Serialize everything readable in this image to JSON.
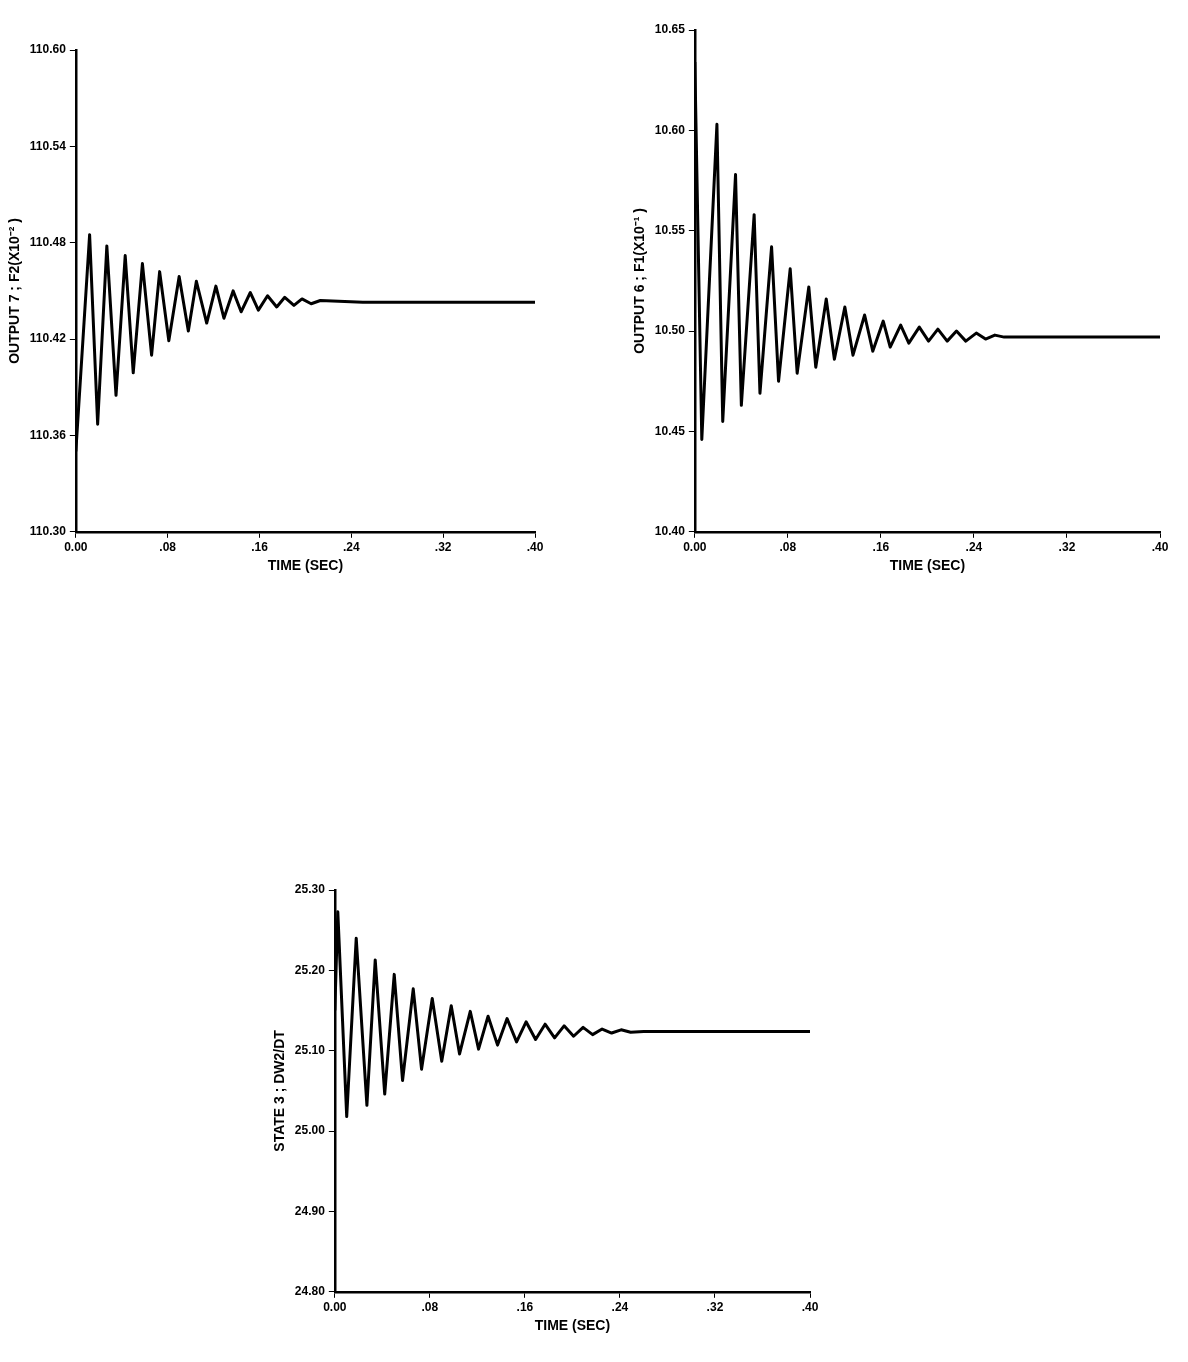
{
  "chart_data": [
    {
      "type": "line",
      "xlabel": "TIME (SEC)",
      "ylabel": "OUTPUT 7 ; F2(X10⁻² )",
      "color": "#000000",
      "x": [
        0,
        0.012,
        0.019,
        0.027,
        0.035,
        0.043,
        0.05,
        0.058,
        0.066,
        0.073,
        0.081,
        0.09,
        0.098,
        0.105,
        0.114,
        0.122,
        0.129,
        0.137,
        0.144,
        0.152,
        0.159,
        0.167,
        0.175,
        0.182,
        0.19,
        0.197,
        0.205,
        0.213,
        0.25,
        0.4
      ],
      "values": [
        110.35,
        110.485,
        110.367,
        110.478,
        110.385,
        110.472,
        110.399,
        110.467,
        110.41,
        110.462,
        110.419,
        110.459,
        110.425,
        110.456,
        110.43,
        110.453,
        110.433,
        110.45,
        110.437,
        110.449,
        110.438,
        110.447,
        110.44,
        110.446,
        110.441,
        110.445,
        110.442,
        110.444,
        110.443,
        110.443
      ],
      "xlim": [
        0,
        0.4
      ],
      "xticks": [
        {
          "value": 0,
          "label": "0.00"
        },
        {
          "value": 0.08,
          "label": ".08"
        },
        {
          "value": 0.16,
          "label": ".16"
        },
        {
          "value": 0.24,
          "label": ".24"
        },
        {
          "value": 0.32,
          "label": ".32"
        },
        {
          "value": 0.4,
          "label": ".40"
        }
      ],
      "ylim": [
        110.3,
        110.6
      ],
      "yticks": [
        {
          "value": 110.3,
          "label": "110.30"
        },
        {
          "value": 110.36,
          "label": "110.36"
        },
        {
          "value": 110.42,
          "label": "110.42"
        },
        {
          "value": 110.48,
          "label": "110.48"
        },
        {
          "value": 110.54,
          "label": "110.54"
        },
        {
          "value": 110.6,
          "label": "110.60"
        }
      ]
    },
    {
      "type": "line",
      "xlabel": "TIME (SEC)",
      "ylabel": "OUTPUT 6 ; F1(X10⁻¹ )",
      "color": "#000000",
      "x": [
        0,
        0.006,
        0.019,
        0.024,
        0.035,
        0.04,
        0.051,
        0.056,
        0.066,
        0.072,
        0.082,
        0.088,
        0.098,
        0.104,
        0.113,
        0.12,
        0.129,
        0.136,
        0.146,
        0.153,
        0.162,
        0.168,
        0.177,
        0.184,
        0.193,
        0.201,
        0.209,
        0.217,
        0.225,
        0.233,
        0.242,
        0.25,
        0.258,
        0.266,
        0.28,
        0.4
      ],
      "values": [
        10.634,
        10.446,
        10.603,
        10.455,
        10.578,
        10.463,
        10.558,
        10.469,
        10.542,
        10.475,
        10.531,
        10.479,
        10.522,
        10.482,
        10.516,
        10.486,
        10.512,
        10.488,
        10.508,
        10.49,
        10.505,
        10.492,
        10.503,
        10.494,
        10.502,
        10.495,
        10.501,
        10.495,
        10.5,
        10.495,
        10.499,
        10.496,
        10.498,
        10.497,
        10.497,
        10.497
      ],
      "xlim": [
        0,
        0.4
      ],
      "xticks": [
        {
          "value": 0,
          "label": "0.00"
        },
        {
          "value": 0.08,
          "label": ".08"
        },
        {
          "value": 0.16,
          "label": ".16"
        },
        {
          "value": 0.24,
          "label": ".24"
        },
        {
          "value": 0.32,
          "label": ".32"
        },
        {
          "value": 0.4,
          "label": ".40"
        }
      ],
      "ylim": [
        10.4,
        10.65
      ],
      "yticks": [
        {
          "value": 10.4,
          "label": "10.40"
        },
        {
          "value": 10.45,
          "label": "10.45"
        },
        {
          "value": 10.5,
          "label": "10.50"
        },
        {
          "value": 10.55,
          "label": "10.55"
        },
        {
          "value": 10.6,
          "label": "10.60"
        },
        {
          "value": 10.65,
          "label": "10.65"
        }
      ]
    },
    {
      "type": "line",
      "xlabel": "TIME (SEC)",
      "ylabel": "STATE 3 ; DW2/DT",
      "color": "#000000",
      "x": [
        0,
        0.0025,
        0.01,
        0.018,
        0.027,
        0.034,
        0.042,
        0.05,
        0.057,
        0.066,
        0.073,
        0.082,
        0.09,
        0.098,
        0.105,
        0.114,
        0.121,
        0.129,
        0.137,
        0.145,
        0.153,
        0.161,
        0.169,
        0.177,
        0.185,
        0.193,
        0.201,
        0.209,
        0.217,
        0.225,
        0.233,
        0.241,
        0.249,
        0.26,
        0.4
      ],
      "values": [
        25.15,
        25.273,
        25.018,
        25.24,
        25.032,
        25.213,
        25.046,
        25.195,
        25.063,
        25.177,
        25.077,
        25.165,
        25.087,
        25.156,
        25.096,
        25.149,
        25.102,
        25.143,
        25.107,
        25.14,
        25.111,
        25.136,
        25.114,
        25.133,
        25.116,
        25.131,
        25.118,
        25.129,
        25.12,
        25.127,
        25.122,
        25.126,
        25.123,
        25.124,
        25.124
      ],
      "xlim": [
        0,
        0.4
      ],
      "xticks": [
        {
          "value": 0,
          "label": "0.00"
        },
        {
          "value": 0.08,
          "label": ".08"
        },
        {
          "value": 0.16,
          "label": ".16"
        },
        {
          "value": 0.24,
          "label": ".24"
        },
        {
          "value": 0.32,
          "label": ".32"
        },
        {
          "value": 0.4,
          "label": ".40"
        }
      ],
      "ylim": [
        24.8,
        25.3
      ],
      "yticks": [
        {
          "value": 24.8,
          "label": "24.80"
        },
        {
          "value": 24.9,
          "label": "24.90"
        },
        {
          "value": 25.0,
          "label": "25.00"
        },
        {
          "value": 25.1,
          "label": "25.10"
        },
        {
          "value": 25.2,
          "label": "25.20"
        },
        {
          "value": 25.3,
          "label": "25.30"
        }
      ]
    }
  ]
}
